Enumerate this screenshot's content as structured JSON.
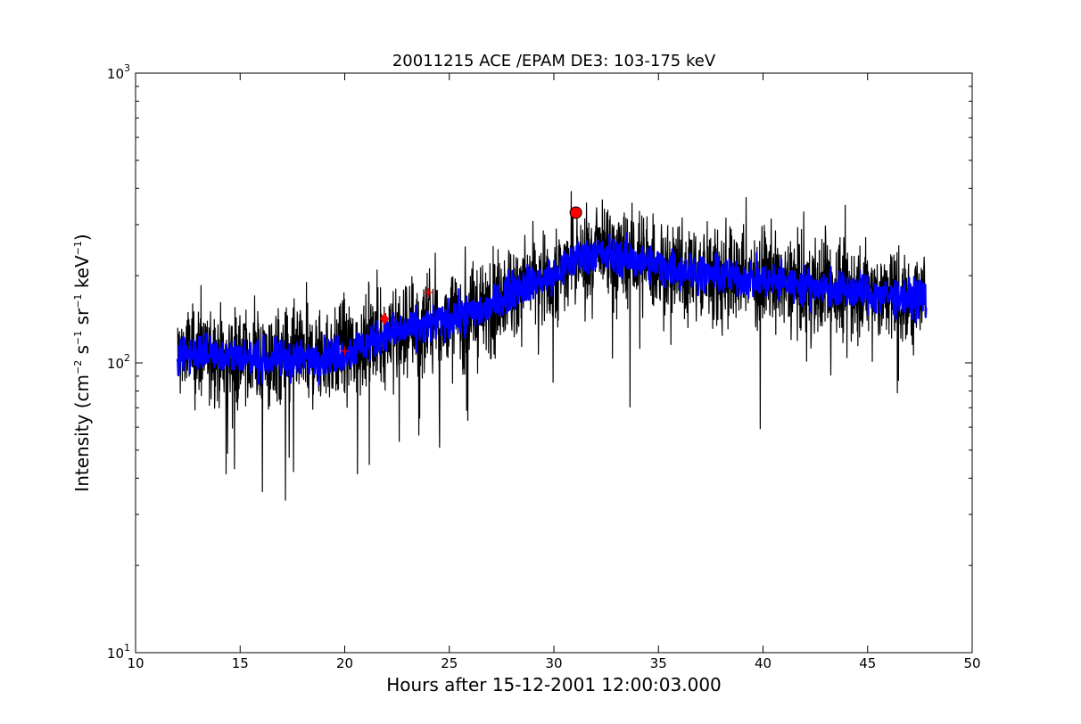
{
  "chart_data": {
    "type": "line",
    "title": "20011215 ACE /EPAM DE3: 103-175 keV",
    "xlabel": "Hours after 15-12-2001 12:00:03.000",
    "ylabel": {
      "prefix": "Intensity (cm",
      "sup1": "−2",
      "mid1": " s",
      "sup2": "−1",
      "mid2": " sr",
      "sup3": "−1",
      "mid3": " keV",
      "sup4": "−1",
      "suffix": ")"
    },
    "xlim": [
      10,
      50
    ],
    "ylim": [
      10,
      1000
    ],
    "yscale": "log",
    "grid": false,
    "x_ticks": [
      "10",
      "15",
      "20",
      "25",
      "30",
      "35",
      "40",
      "45",
      "50"
    ],
    "y_ticks": [
      {
        "base": "10",
        "exp": "1"
      },
      {
        "base": "10",
        "exp": "2"
      },
      {
        "base": "10",
        "exp": "3"
      }
    ],
    "colors": {
      "raw": "#000000",
      "smoothed": "#0000ff",
      "marker": "#ff0000"
    },
    "series": [
      {
        "style": "raw-noisy",
        "color": "#000000",
        "x_range": [
          12.0,
          47.8
        ],
        "envelope": {
          "x": [
            12,
            14,
            16,
            18,
            20,
            22,
            24,
            26,
            27,
            28,
            29,
            30,
            31,
            32,
            34,
            36,
            38,
            40,
            42,
            44,
            46,
            47.8
          ],
          "y": [
            108,
            108,
            102,
            103,
            108,
            125,
            135,
            148,
            155,
            180,
            190,
            198,
            230,
            240,
            225,
            210,
            200,
            193,
            185,
            177,
            170,
            166
          ]
        }
      },
      {
        "style": "smoothed",
        "color": "#0000ff",
        "x_range": [
          12.0,
          47.8
        ],
        "envelope": {
          "x": [
            12,
            14,
            16,
            18,
            20,
            22,
            24,
            26,
            27,
            28,
            29,
            30,
            31,
            32,
            34,
            36,
            38,
            40,
            42,
            44,
            46,
            47.8
          ],
          "y": [
            108,
            108,
            102,
            103,
            108,
            125,
            135,
            148,
            155,
            180,
            190,
            198,
            230,
            240,
            225,
            210,
            200,
            193,
            185,
            177,
            170,
            166
          ]
        }
      }
    ],
    "markers": [
      {
        "type": "circle",
        "x": 31.05,
        "y": 330,
        "color": "#ff0000"
      },
      {
        "type": "diamond",
        "x": 21.9,
        "y": 142,
        "color": "#ff0000"
      },
      {
        "type": "plus",
        "x": 20.0,
        "y": 110,
        "color": "#ff0000"
      },
      {
        "type": "plus",
        "x": 24.0,
        "y": 175,
        "color": "#ff0000"
      }
    ]
  }
}
